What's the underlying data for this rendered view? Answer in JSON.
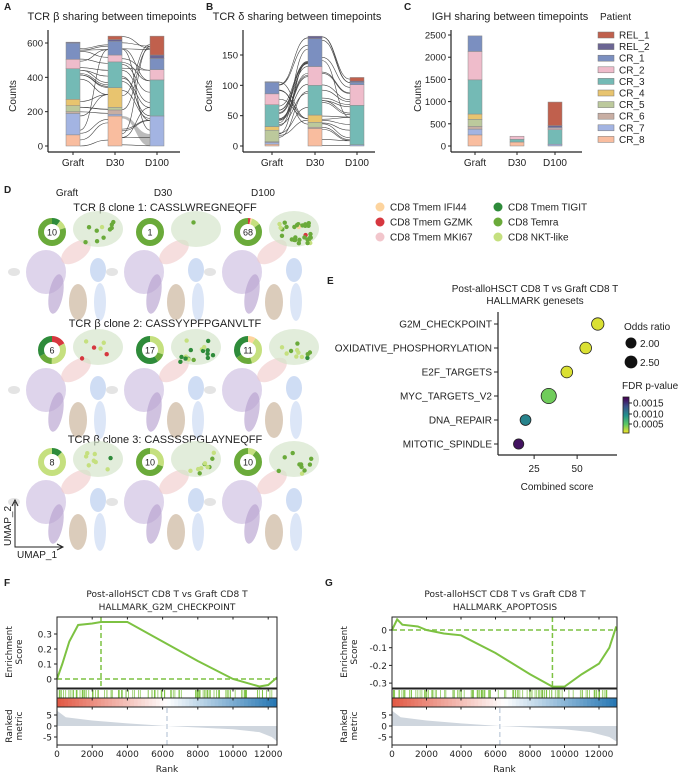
{
  "panel_labels": [
    "A",
    "B",
    "C",
    "D",
    "E",
    "F",
    "G"
  ],
  "patient_legend": {
    "title": "Patient",
    "items": [
      {
        "name": "REL_1",
        "color": "#c0604d"
      },
      {
        "name": "REL_2",
        "color": "#6b6593"
      },
      {
        "name": "CR_1",
        "color": "#7b8fc0"
      },
      {
        "name": "CR_2",
        "color": "#efbccb"
      },
      {
        "name": "CR_3",
        "color": "#74bab5"
      },
      {
        "name": "CR_4",
        "color": "#e8c46f"
      },
      {
        "name": "CR_5",
        "color": "#bcc99c"
      },
      {
        "name": "CR_6",
        "color": "#c8aea3"
      },
      {
        "name": "CR_7",
        "color": "#a3b4e2"
      },
      {
        "name": "CR_8",
        "color": "#f9bd9f"
      }
    ]
  },
  "chart_data": [
    {
      "panel": "A",
      "type": "bar",
      "stacked": true,
      "alluvial": true,
      "title": "TCR β sharing between timepoints",
      "xlabel": "",
      "ylabel": "Counts",
      "categories": [
        "Graft",
        "D30",
        "D100"
      ],
      "yticks": [
        0,
        200,
        400,
        600
      ],
      "ylim": [
        0,
        660
      ],
      "series": [
        {
          "name": "CR_8",
          "values": [
            65,
            175,
            0
          ]
        },
        {
          "name": "CR_7",
          "values": [
            125,
            10,
            175
          ]
        },
        {
          "name": "CR_6",
          "values": [
            10,
            25,
            0
          ]
        },
        {
          "name": "CR_5",
          "values": [
            35,
            15,
            0
          ]
        },
        {
          "name": "CR_4",
          "values": [
            37,
            115,
            0
          ]
        },
        {
          "name": "CR_3",
          "values": [
            178,
            150,
            210
          ]
        },
        {
          "name": "CR_2",
          "values": [
            55,
            40,
            60
          ]
        },
        {
          "name": "CR_1",
          "values": [
            95,
            80,
            65
          ]
        },
        {
          "name": "REL_2",
          "values": [
            5,
            10,
            20
          ]
        },
        {
          "name": "REL_1",
          "values": [
            0,
            20,
            110
          ]
        }
      ]
    },
    {
      "panel": "B",
      "type": "bar",
      "stacked": true,
      "alluvial": true,
      "title": "TCR δ sharing between timepoints",
      "xlabel": "",
      "ylabel": "Counts",
      "categories": [
        "Graft",
        "D30",
        "D100"
      ],
      "yticks": [
        0,
        50,
        100,
        150
      ],
      "ylim": [
        0,
        185
      ],
      "series": [
        {
          "name": "CR_8",
          "values": [
            3,
            29,
            0
          ]
        },
        {
          "name": "CR_7",
          "values": [
            3,
            0,
            2
          ]
        },
        {
          "name": "CR_6",
          "values": [
            1,
            2,
            0
          ]
        },
        {
          "name": "CR_5",
          "values": [
            19,
            8,
            0
          ]
        },
        {
          "name": "CR_4",
          "values": [
            6,
            12,
            0
          ]
        },
        {
          "name": "CR_3",
          "values": [
            36,
            49,
            65
          ]
        },
        {
          "name": "CR_2",
          "values": [
            18,
            31,
            34
          ]
        },
        {
          "name": "CR_1",
          "values": [
            19,
            46,
            4
          ]
        },
        {
          "name": "REL_2",
          "values": [
            1,
            4,
            2
          ]
        },
        {
          "name": "REL_1",
          "values": [
            0,
            0,
            6
          ]
        }
      ]
    },
    {
      "panel": "C",
      "type": "bar",
      "stacked": true,
      "title": "IGH sharing between timepoints",
      "xlabel": "",
      "ylabel": "Counts",
      "categories": [
        "Graft",
        "D30",
        "D100"
      ],
      "yticks": [
        0,
        500,
        1000,
        1500,
        2000,
        2500
      ],
      "ylim": [
        0,
        2600
      ],
      "series": [
        {
          "name": "CR_8",
          "values": [
            250,
            90,
            0
          ]
        },
        {
          "name": "CR_7",
          "values": [
            130,
            0,
            40
          ]
        },
        {
          "name": "CR_6",
          "values": [
            60,
            0,
            0
          ]
        },
        {
          "name": "CR_5",
          "values": [
            160,
            0,
            0
          ]
        },
        {
          "name": "CR_4",
          "values": [
            120,
            0,
            0
          ]
        },
        {
          "name": "CR_3",
          "values": [
            770,
            60,
            330
          ]
        },
        {
          "name": "CR_2",
          "values": [
            640,
            70,
            30
          ]
        },
        {
          "name": "CR_1",
          "values": [
            350,
            0,
            20
          ]
        },
        {
          "name": "REL_2",
          "values": [
            0,
            0,
            40
          ]
        },
        {
          "name": "REL_1",
          "values": [
            0,
            0,
            530
          ]
        }
      ]
    },
    {
      "panel": "E",
      "type": "scatter",
      "title": "Post-alloHSCT CD8 T vs Graft CD8 T",
      "subtitle": "HALLMARK genesets",
      "xlabel": "Combined score",
      "ylabel": "",
      "xticks": [
        25,
        50
      ],
      "xlim": [
        4,
        75
      ],
      "points": [
        {
          "term": "G2M_CHECKPOINT",
          "combined_score": 62,
          "odds_ratio": 2.4,
          "fdr": 0.0001
        },
        {
          "term": "OXIDATIVE_PHOSPHORYLATION",
          "combined_score": 55,
          "odds_ratio": 2.2,
          "fdr": 0.0001
        },
        {
          "term": "E2F_TARGETS",
          "combined_score": 44,
          "odds_ratio": 2.2,
          "fdr": 0.0001
        },
        {
          "term": "MYC_TARGETS_V2",
          "combined_score": 33.5,
          "odds_ratio": 3.2,
          "fdr": 0.0004
        },
        {
          "term": "DNA_REPAIR",
          "combined_score": 20,
          "odds_ratio": 1.95,
          "fdr": 0.001
        },
        {
          "term": "MITOTIC_SPINDLE",
          "combined_score": 16,
          "odds_ratio": 1.8,
          "fdr": 0.0017
        }
      ],
      "size_legend": {
        "title": "Odds ratio",
        "values": [
          2.0,
          2.5
        ],
        "labels": [
          "2.00",
          "2.50"
        ]
      },
      "color_legend": {
        "title": "FDR p-value",
        "colormap": "viridis",
        "ticks": [
          "0.0015",
          "0.0010",
          "0.0005"
        ],
        "range": [
          0,
          0.0018
        ]
      }
    },
    {
      "panel": "F",
      "type": "line",
      "title": "Post-alloHSCT CD8 T vs Graft CD8 T",
      "subtitle": "HALLMARK_G2M_CHECKPOINT",
      "ylabel": [
        "Enrichment",
        "Score"
      ],
      "ylabel2": [
        "Ranked",
        "metric"
      ],
      "xlabel": "Rank",
      "xticks": [
        0,
        2000,
        4000,
        6000,
        8000,
        10000,
        12000
      ],
      "xlim": [
        0,
        12500
      ],
      "yticks": [
        0.0,
        0.1,
        0.2,
        0.3
      ],
      "ylim": [
        -0.06,
        0.41
      ],
      "metric_yticks": [
        5,
        0,
        -5
      ],
      "metric_ylim": [
        -8.5,
        8.5
      ],
      "peak_rank": 2500,
      "zero_cross_rank": 6250,
      "es_curve": [
        [
          0,
          0
        ],
        [
          300,
          0.1
        ],
        [
          700,
          0.25
        ],
        [
          1200,
          0.36
        ],
        [
          2000,
          0.37
        ],
        [
          2500,
          0.38
        ],
        [
          4000,
          0.38
        ],
        [
          6000,
          0.25
        ],
        [
          8000,
          0.12
        ],
        [
          10000,
          0.0
        ],
        [
          11500,
          -0.05
        ],
        [
          12000,
          -0.04
        ],
        [
          12500,
          0.01
        ]
      ],
      "ranked_metric": [
        [
          0,
          7
        ],
        [
          500,
          4
        ],
        [
          2000,
          2.5
        ],
        [
          4000,
          1.2
        ],
        [
          6250,
          0
        ],
        [
          8000,
          -0.7
        ],
        [
          10000,
          -1.5
        ],
        [
          11500,
          -2.8
        ],
        [
          12200,
          -5
        ],
        [
          12500,
          -7
        ]
      ],
      "color": "#7dc242"
    },
    {
      "panel": "G",
      "type": "line",
      "title": "Post-alloHSCT CD8 T vs Graft CD8 T",
      "subtitle": "HALLMARK_APOPTOSIS",
      "ylabel": [
        "Enrichment",
        "Score"
      ],
      "ylabel2": [
        "Ranked",
        "metric"
      ],
      "xlabel": "Rank",
      "xticks": [
        0,
        2000,
        4000,
        6000,
        8000,
        10000,
        12000
      ],
      "xlim": [
        0,
        13000
      ],
      "yticks": [
        0.0,
        -0.1,
        -0.2,
        -0.3
      ],
      "ylim": [
        -0.33,
        0.065
      ],
      "metric_yticks": [
        5,
        0,
        -5
      ],
      "metric_ylim": [
        -8.5,
        8.5
      ],
      "peak_rank": 9300,
      "zero_cross_rank": 6250,
      "es_curve": [
        [
          0,
          0
        ],
        [
          300,
          0.06
        ],
        [
          600,
          0.03
        ],
        [
          1500,
          0.02
        ],
        [
          2000,
          0.0
        ],
        [
          3000,
          -0.02
        ],
        [
          4000,
          -0.03
        ],
        [
          6000,
          -0.13
        ],
        [
          8000,
          -0.25
        ],
        [
          9300,
          -0.32
        ],
        [
          10000,
          -0.32
        ],
        [
          11000,
          -0.25
        ],
        [
          12000,
          -0.19
        ],
        [
          12600,
          -0.1
        ],
        [
          13000,
          0.02
        ]
      ],
      "ranked_metric": [
        [
          0,
          7
        ],
        [
          500,
          4
        ],
        [
          2000,
          2.5
        ],
        [
          4000,
          1.2
        ],
        [
          6250,
          0
        ],
        [
          8000,
          -0.7
        ],
        [
          10000,
          -1.5
        ],
        [
          11500,
          -2.8
        ],
        [
          12600,
          -5
        ],
        [
          13000,
          -7
        ]
      ],
      "color": "#7dc242"
    }
  ],
  "panel_d": {
    "timepoints": [
      "Graft",
      "D30",
      "D100"
    ],
    "axis_labels": {
      "x": "UMAP_1",
      "y": "UMAP_2"
    },
    "cell_types": [
      {
        "name": "CD8 Tmem IFI44",
        "color": "#fdd49e"
      },
      {
        "name": "CD8 Tmem GZMK",
        "color": "#d6373f"
      },
      {
        "name": "CD8 Tmem MKI67",
        "color": "#f2c6cc"
      },
      {
        "name": "CD8 Tmem TIGIT",
        "color": "#2e8b3a"
      },
      {
        "name": "CD8 Temra",
        "color": "#6aaa3a"
      },
      {
        "name": "CD8 NKT-like",
        "color": "#c5e07f"
      }
    ],
    "clones": [
      {
        "title": "TCR β clone 1: CASSLWREGNEQFF",
        "cells": [
          {
            "count": "10",
            "composition": {
              "CD8 Tmem TIGIT": 0.1,
              "CD8 NKT-like": 0.1,
              "CD8 Temra": 0.8
            }
          },
          {
            "count": "1",
            "composition": {
              "CD8 Temra": 1.0
            }
          },
          {
            "count": "68",
            "composition": {
              "CD8 Tmem GZMK": 0.03,
              "CD8 Tmem IFI44": 0.02,
              "CD8 NKT-like": 0.1,
              "CD8 Temra": 0.85
            }
          }
        ]
      },
      {
        "title": "TCR β clone 2: CASSYYPFPGANVLTF",
        "cells": [
          {
            "count": "6",
            "composition": {
              "CD8 Tmem GZMK": 0.17,
              "CD8 NKT-like": 0.33,
              "CD8 Temra": 0.17,
              "CD8 Tmem TIGIT": 0.33
            }
          },
          {
            "count": "17",
            "composition": {
              "CD8 NKT-like": 0.3,
              "CD8 Temra": 0.1,
              "CD8 Tmem TIGIT": 0.6
            }
          },
          {
            "count": "11",
            "composition": {
              "CD8 Tmem IFI44": 0.09,
              "CD8 NKT-like": 0.36,
              "CD8 Temra": 0.2,
              "CD8 Tmem TIGIT": 0.35
            }
          }
        ]
      },
      {
        "title": "TCR β clone 3: CASSSSPGLAYNEQFF",
        "cells": [
          {
            "count": "8",
            "composition": {
              "CD8 Tmem TIGIT": 0.125,
              "CD8 NKT-like": 0.875
            }
          },
          {
            "count": "10",
            "composition": {
              "CD8 NKT-like": 0.3,
              "CD8 Temra": 0.7
            }
          },
          {
            "count": "10",
            "composition": {
              "CD8 NKT-like": 0.1,
              "CD8 Temra": 0.9
            }
          }
        ]
      }
    ]
  }
}
